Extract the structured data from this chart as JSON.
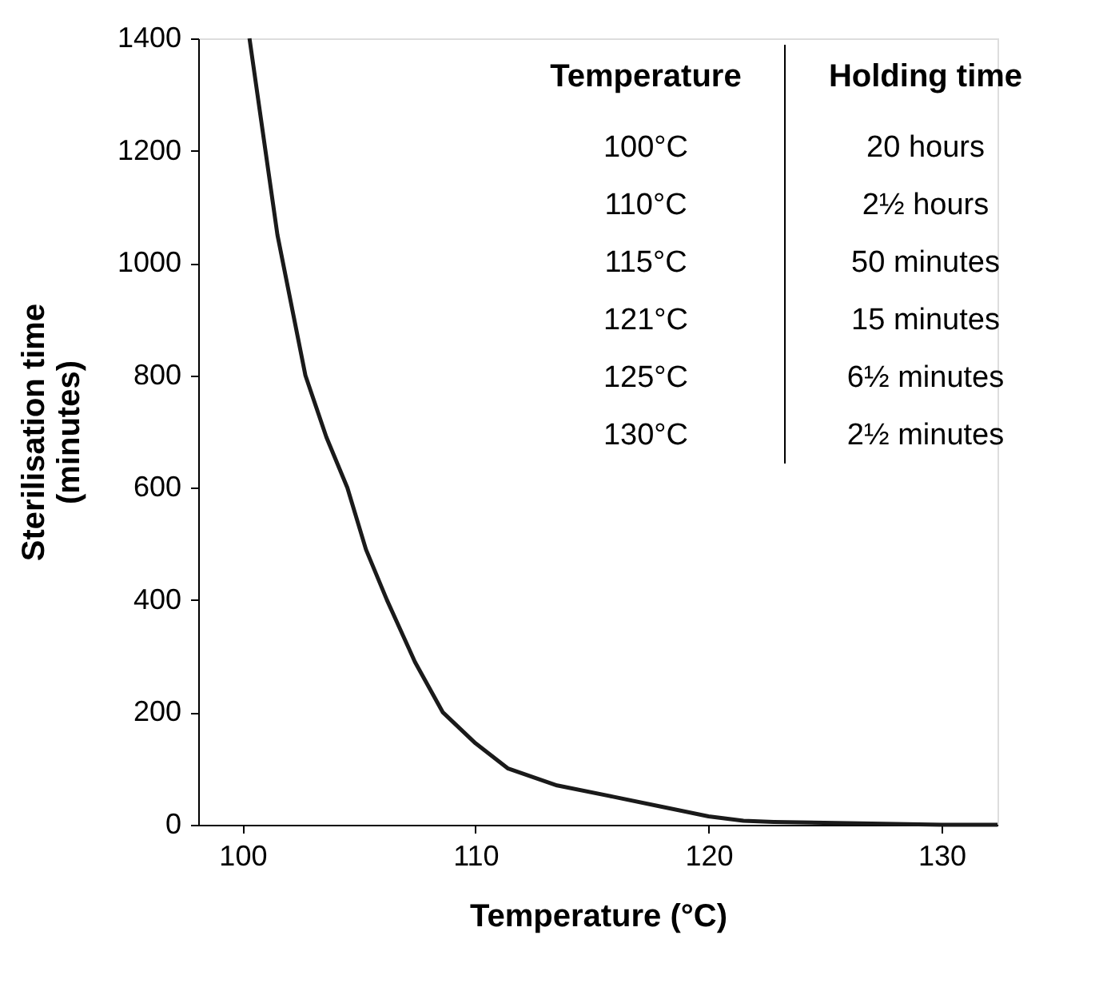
{
  "chart_data": {
    "type": "line",
    "xlabel": "Temperature (°C)",
    "ylabel": "Sterilisation time\n(minutes)",
    "x": [
      100.3,
      101.5,
      102.7,
      103.6,
      104.5,
      105.3,
      106.2,
      107.4,
      108.6,
      110,
      111.4,
      113.5,
      115.9,
      118,
      120,
      121.5,
      122.8,
      126,
      130,
      132.4
    ],
    "values": [
      1400,
      1050,
      800,
      690,
      600,
      490,
      400,
      290,
      200,
      145,
      100,
      70,
      50,
      32,
      15,
      7,
      5,
      3,
      0,
      0
    ],
    "color": "#1a1a1a",
    "xlim": [
      98.1,
      132.4
    ],
    "xticks": [
      100,
      110,
      120,
      130
    ],
    "ylim": [
      0,
      1400
    ],
    "yticks": [
      0,
      200,
      400,
      600,
      800,
      1000,
      1200,
      1400
    ],
    "grid": false,
    "marker": "none",
    "line_style": "solid",
    "annotations": [
      "Temperature",
      "Holding time",
      "100°C",
      "20 hours",
      "110°C",
      "2½ hours",
      "115°C",
      "50 minutes",
      "121°C",
      "15 minutes",
      "125°C",
      "6½ minutes",
      "130°C",
      "2½ minutes"
    ]
  }
}
